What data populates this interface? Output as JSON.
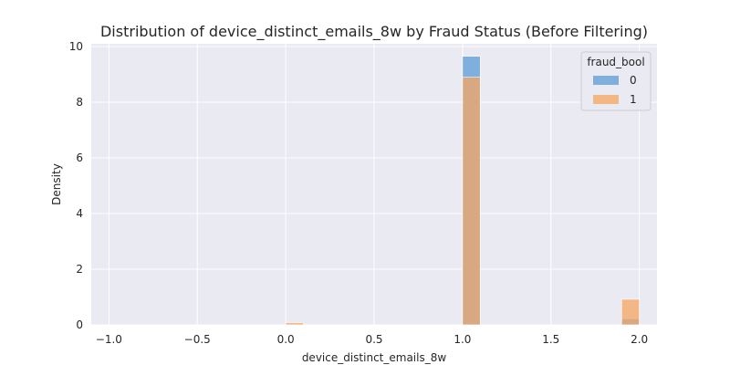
{
  "chart_data": {
    "type": "bar",
    "title": "Distribution of device_distinct_emails_8w by Fraud Status (Before Filtering)",
    "xlabel": "device_distinct_emails_8w",
    "ylabel": "Density",
    "xlim": [
      -1.1,
      2.1
    ],
    "ylim": [
      0,
      10.1
    ],
    "x_ticks": [
      "−1.0",
      "−0.5",
      "0.0",
      "0.5",
      "1.0",
      "1.5",
      "2.0"
    ],
    "x_tick_values": [
      -1.0,
      -0.5,
      0.0,
      0.5,
      1.0,
      1.5,
      2.0
    ],
    "y_ticks": [
      "0",
      "2",
      "4",
      "6",
      "8",
      "10"
    ],
    "y_tick_values": [
      0,
      2,
      4,
      6,
      8,
      10
    ],
    "grid": true,
    "legend_title": "fraud_bool",
    "legend_position": "top-right",
    "series": [
      {
        "name": "0",
        "color": "#5a9bd5",
        "bins": [
          {
            "x0": 0.0,
            "x1": 0.1,
            "value": 0.02
          },
          {
            "x0": 1.0,
            "x1": 1.1,
            "value": 9.65
          },
          {
            "x0": 1.9,
            "x1": 2.0,
            "value": 0.22
          }
        ]
      },
      {
        "name": "1",
        "color": "#f5a562",
        "bins": [
          {
            "x0": 0.0,
            "x1": 0.1,
            "value": 0.08
          },
          {
            "x0": 1.0,
            "x1": 1.1,
            "value": 8.9
          },
          {
            "x0": 1.9,
            "x1": 2.0,
            "value": 0.92
          }
        ]
      }
    ]
  }
}
